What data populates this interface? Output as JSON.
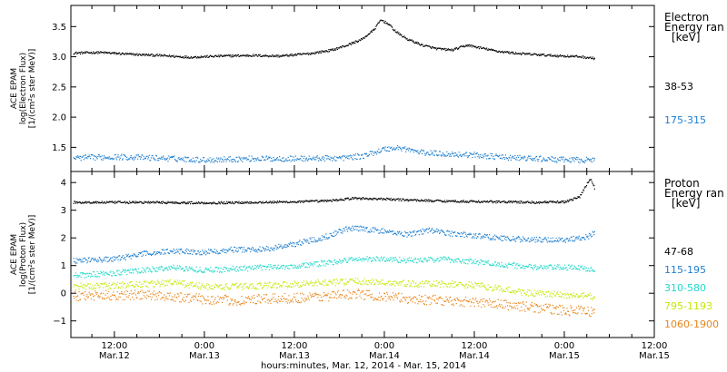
{
  "chart_data": {
    "type": "scatter",
    "xlabel": "hours:minutes, Mar. 12, 2014 - Mar. 15, 2014",
    "x_ticks": [
      {
        "t": 12,
        "l1": "12:00",
        "l2": "Mar.12"
      },
      {
        "t": 24,
        "l1": "0:00",
        "l2": "Mar.13"
      },
      {
        "t": 36,
        "l1": "12:00",
        "l2": "Mar.13"
      },
      {
        "t": 48,
        "l1": "0:00",
        "l2": "Mar.14"
      },
      {
        "t": 60,
        "l1": "12:00",
        "l2": "Mar.14"
      },
      {
        "t": 72,
        "l1": "0:00",
        "l2": "Mar.15"
      },
      {
        "t": 84,
        "l1": "12:00",
        "l2": "Mar.15"
      }
    ],
    "xlim_hours_from_mar12_0000": [
      6.2,
      84
    ],
    "panels": [
      {
        "id": "electron",
        "ylabel_lines": [
          "ACE EPAM",
          "log(Electron Flux)",
          "[1/(cm²s ster MeV)]"
        ],
        "ylim": [
          1.1,
          3.85
        ],
        "yticks": [
          1.5,
          2.0,
          2.5,
          3.0,
          3.5
        ],
        "ytick_labels": [
          "1.5",
          "2.0",
          "2.5",
          "3.0",
          "3.5"
        ],
        "legend_title_lines": [
          "Electron",
          "Energy ran",
          "[keV]"
        ],
        "series": [
          {
            "name": "38-53",
            "color": "#000000",
            "x": [
              6.5,
              10,
              14,
              18,
              22,
              26,
              30,
              34,
              38,
              41,
              43,
              45,
              46.5,
              47.5,
              48.5,
              49.5,
              51,
              53,
              55,
              57,
              59,
              61,
              63,
              66,
              70,
              74,
              76
            ],
            "y": [
              3.07,
              3.08,
              3.05,
              3.03,
              3.0,
              3.02,
              3.03,
              3.02,
              3.06,
              3.12,
              3.2,
              3.3,
              3.45,
              3.62,
              3.55,
              3.42,
              3.3,
              3.2,
              3.14,
              3.12,
              3.2,
              3.15,
              3.1,
              3.06,
              3.03,
              3.01,
              2.98
            ]
          },
          {
            "name": "175-315",
            "color": "#1f7fd0",
            "x": [
              6.5,
              12,
              18,
              24,
              30,
              36,
              42,
              45,
              48,
              50,
              53,
              56,
              60,
              64,
              68,
              72,
              76
            ],
            "y": [
              1.33,
              1.35,
              1.33,
              1.3,
              1.32,
              1.32,
              1.33,
              1.36,
              1.48,
              1.5,
              1.42,
              1.4,
              1.38,
              1.34,
              1.32,
              1.3,
              1.3
            ]
          }
        ]
      },
      {
        "id": "proton",
        "ylabel_lines": [
          "ACE EPAM",
          "log(Proton Flux)",
          "[1/(cm²s ster MeV)]"
        ],
        "ylim": [
          -1.6,
          4.4
        ],
        "yticks": [
          -1,
          0,
          1,
          2,
          3,
          4
        ],
        "ytick_labels": [
          "−1",
          "0",
          "1",
          "2",
          "3",
          "4"
        ],
        "legend_title_lines": [
          "Proton",
          "Energy ran",
          "[keV]"
        ],
        "series": [
          {
            "name": "47-68",
            "color": "#000000",
            "x": [
              6.5,
              12,
              18,
              24,
              30,
              36,
              40,
              44,
              48,
              52,
              56,
              60,
              64,
              68,
              72,
              74,
              75,
              75.5,
              76
            ],
            "y": [
              3.3,
              3.3,
              3.3,
              3.28,
              3.3,
              3.32,
              3.35,
              3.45,
              3.42,
              3.38,
              3.35,
              3.33,
              3.32,
              3.3,
              3.32,
              3.5,
              4.0,
              4.15,
              3.8
            ]
          },
          {
            "name": "115-195",
            "color": "#1f7fd0",
            "x": [
              6.5,
              12,
              16,
              20,
              24,
              28,
              32,
              36,
              40,
              43,
              45,
              48,
              51,
              54,
              56,
              60,
              64,
              68,
              72,
              75,
              76
            ],
            "y": [
              1.2,
              1.25,
              1.45,
              1.55,
              1.5,
              1.6,
              1.6,
              1.8,
              2.05,
              2.35,
              2.35,
              2.25,
              2.15,
              2.3,
              2.2,
              2.1,
              2.0,
              1.95,
              1.95,
              2.05,
              2.25
            ]
          },
          {
            "name": "310-580",
            "color": "#22d8c8",
            "x": [
              6.5,
              12,
              16,
              20,
              24,
              28,
              32,
              36,
              40,
              44,
              48,
              52,
              56,
              60,
              64,
              68,
              72,
              76
            ],
            "y": [
              0.65,
              0.75,
              0.85,
              0.95,
              0.85,
              0.9,
              0.95,
              1.0,
              1.1,
              1.25,
              1.25,
              1.2,
              1.25,
              1.15,
              1.05,
              0.95,
              0.95,
              0.9
            ]
          },
          {
            "name": "795-1193",
            "color": "#c4e80a",
            "x": [
              6.5,
              12,
              16,
              20,
              24,
              28,
              32,
              36,
              40,
              44,
              48,
              52,
              56,
              60,
              64,
              68,
              72,
              76
            ],
            "y": [
              0.25,
              0.3,
              0.35,
              0.4,
              0.25,
              0.25,
              0.3,
              0.35,
              0.4,
              0.45,
              0.4,
              0.35,
              0.35,
              0.3,
              0.15,
              0.0,
              -0.05,
              -0.1
            ]
          },
          {
            "name": "1060-1900",
            "color": "#e8851a",
            "x": [
              6.5,
              12,
              16,
              20,
              24,
              28,
              32,
              36,
              40,
              44,
              48,
              52,
              56,
              60,
              64,
              68,
              72,
              76
            ],
            "y": [
              -0.1,
              -0.05,
              -0.05,
              -0.1,
              -0.2,
              -0.25,
              -0.2,
              -0.15,
              -0.1,
              0.0,
              -0.1,
              -0.2,
              -0.25,
              -0.3,
              -0.4,
              -0.5,
              -0.6,
              -0.65
            ]
          }
        ]
      }
    ]
  }
}
